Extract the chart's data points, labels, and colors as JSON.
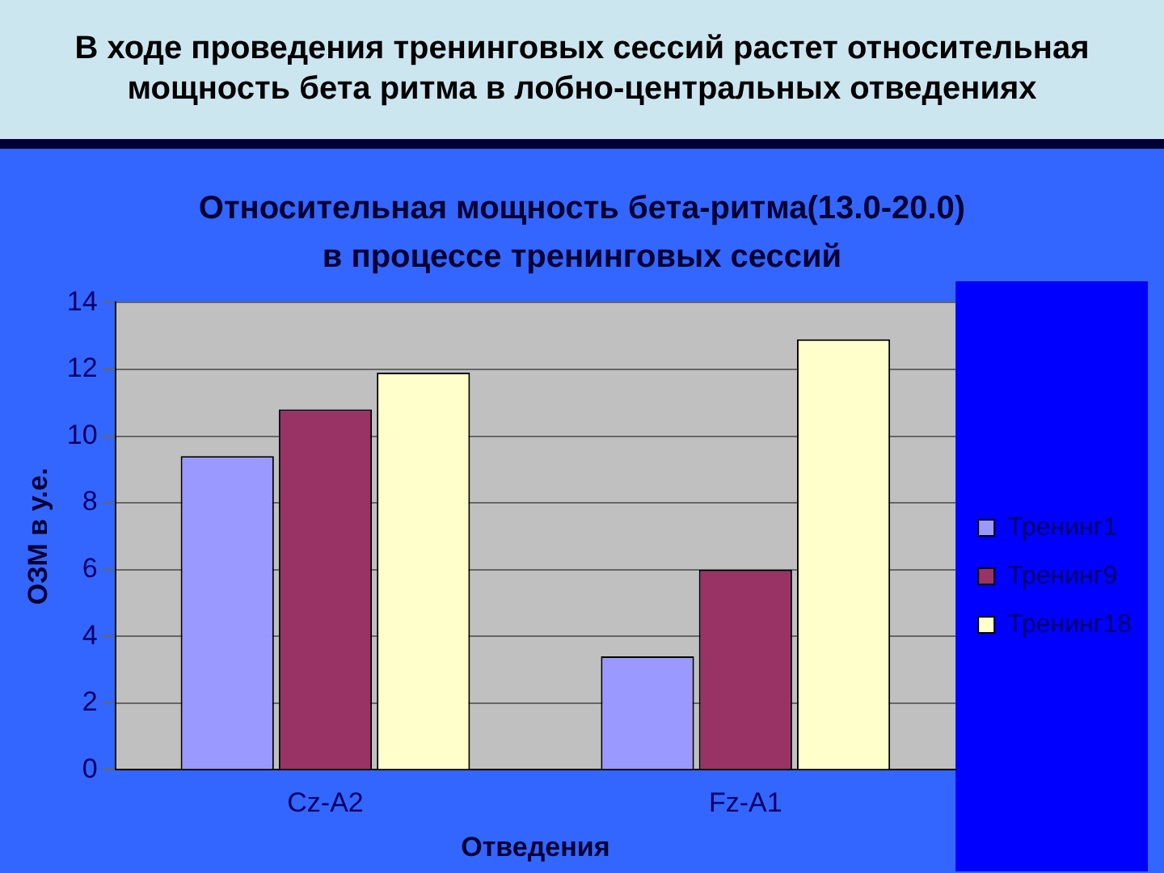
{
  "chart_data": {
    "type": "bar",
    "title": "В ходе проведения тренинговых сессий растет относительная мощность бета ритма в лобно-центральных отведениях",
    "subtitle": "Относительная мощность бета-ритма(13.0-20.0)\nв процессе тренинговых сессий",
    "xlabel": "Отведения",
    "ylabel": "ОЗМ в у.е.",
    "categories": [
      "Cz-A2",
      "Fz-A1"
    ],
    "series": [
      {
        "name": "Тренинг1",
        "color": "#9999ff",
        "values": [
          9.4,
          3.4
        ]
      },
      {
        "name": "Тренинг9",
        "color": "#993366",
        "values": [
          10.8,
          6.0
        ]
      },
      {
        "name": "Тренинг18",
        "color": "#ffffcc",
        "values": [
          11.9,
          12.9
        ]
      }
    ],
    "ylim": [
      0,
      14
    ],
    "yticks": [
      0,
      2,
      4,
      6,
      8,
      10,
      12,
      14
    ],
    "grid": "y",
    "legend": "right"
  }
}
